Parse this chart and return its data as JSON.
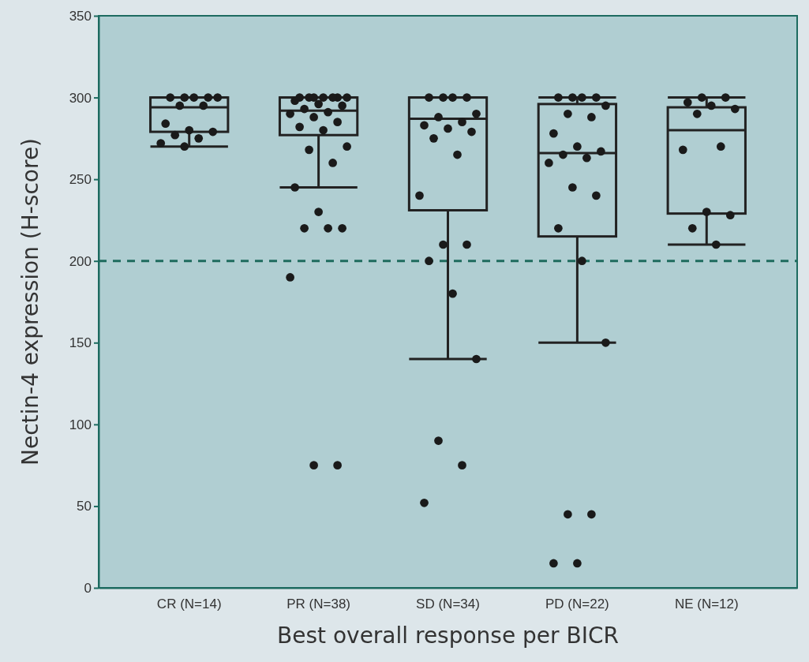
{
  "chart_data": {
    "type": "box",
    "xlabel": "Best overall response per BICR",
    "ylabel": "Nectin-4 expression (H-score)",
    "categories": [
      "CR (N=14)",
      "PR (N=38)",
      "SD (N=34)",
      "PD (N=22)",
      "NE (N=12)"
    ],
    "ylim": [
      0,
      350
    ],
    "yticks": [
      0,
      50,
      100,
      150,
      200,
      250,
      300,
      350
    ],
    "grid": false,
    "boxes": [
      {
        "low": 270,
        "q1": 279,
        "median": 294,
        "q3": 300,
        "high": 300
      },
      {
        "low": 245,
        "q1": 277,
        "median": 292,
        "q3": 300,
        "high": 300
      },
      {
        "low": 140,
        "q1": 231,
        "median": 287,
        "q3": 300,
        "high": 300
      },
      {
        "low": 150,
        "q1": 215,
        "median": 266,
        "q3": 296,
        "high": 300
      },
      {
        "low": 210,
        "q1": 229,
        "median": 280,
        "q3": 294,
        "high": 300
      }
    ],
    "color": "#222222",
    "series": [
      {
        "type": "scatter",
        "color": "#1a1a1a",
        "marker": "circle",
        "x": [
          "CR (N=14)",
          "CR (N=14)",
          "CR (N=14)",
          "CR (N=14)",
          "CR (N=14)",
          "CR (N=14)",
          "CR (N=14)",
          "CR (N=14)",
          "CR (N=14)",
          "CR (N=14)",
          "CR (N=14)",
          "CR (N=14)",
          "CR (N=14)",
          "CR (N=14)",
          "PR (N=38)",
          "PR (N=38)",
          "PR (N=38)",
          "PR (N=38)",
          "PR (N=38)",
          "PR (N=38)",
          "PR (N=38)",
          "PR (N=38)",
          "PR (N=38)",
          "PR (N=38)",
          "PR (N=38)",
          "PR (N=38)",
          "PR (N=38)",
          "PR (N=38)",
          "PR (N=38)",
          "PR (N=38)",
          "PR (N=38)",
          "PR (N=38)",
          "PR (N=38)",
          "PR (N=38)",
          "PR (N=38)",
          "PR (N=38)",
          "PR (N=38)",
          "PR (N=38)",
          "PR (N=38)",
          "PR (N=38)",
          "PR (N=38)",
          "PR (N=38)",
          "SD (N=34)",
          "SD (N=34)",
          "SD (N=34)",
          "SD (N=34)",
          "SD (N=34)",
          "SD (N=34)",
          "SD (N=34)",
          "SD (N=34)",
          "SD (N=34)",
          "SD (N=34)",
          "SD (N=34)",
          "SD (N=34)",
          "SD (N=34)",
          "SD (N=34)",
          "SD (N=34)",
          "SD (N=34)",
          "SD (N=34)",
          "SD (N=34)",
          "SD (N=34)",
          "SD (N=34)",
          "SD (N=34)",
          "PD (N=22)",
          "PD (N=22)",
          "PD (N=22)",
          "PD (N=22)",
          "PD (N=22)",
          "PD (N=22)",
          "PD (N=22)",
          "PD (N=22)",
          "PD (N=22)",
          "PD (N=22)",
          "PD (N=22)",
          "PD (N=22)",
          "PD (N=22)",
          "PD (N=22)",
          "PD (N=22)",
          "PD (N=22)",
          "PD (N=22)",
          "PD (N=22)",
          "PD (N=22)",
          "PD (N=22)",
          "PD (N=22)",
          "PD (N=22)",
          "NE (N=12)",
          "NE (N=12)",
          "NE (N=12)",
          "NE (N=12)",
          "NE (N=12)",
          "NE (N=12)",
          "NE (N=12)",
          "NE (N=12)",
          "NE (N=12)",
          "NE (N=12)",
          "NE (N=12)",
          "NE (N=12)"
        ],
        "values": [
          300,
          300,
          300,
          300,
          300,
          295,
          295,
          284,
          280,
          279,
          277,
          275,
          272,
          270,
          300,
          300,
          300,
          300,
          300,
          300,
          300,
          298,
          296,
          295,
          293,
          291,
          290,
          288,
          285,
          282,
          280,
          270,
          268,
          260,
          245,
          230,
          220,
          220,
          220,
          190,
          75,
          75,
          300,
          300,
          300,
          300,
          290,
          288,
          285,
          283,
          281,
          279,
          275,
          265,
          240,
          210,
          210,
          200,
          180,
          140,
          90,
          75,
          52,
          300,
          300,
          300,
          300,
          295,
          290,
          288,
          278,
          270,
          267,
          265,
          263,
          260,
          245,
          240,
          220,
          200,
          150,
          45,
          45,
          15,
          15,
          300,
          300,
          297,
          295,
          293,
          290,
          270,
          268,
          230,
          228,
          220,
          210
        ]
      }
    ],
    "ref_lines": [
      {
        "axis": "y",
        "value": 200,
        "color": "#1e6b5e",
        "line_style": "dashed"
      }
    ]
  }
}
